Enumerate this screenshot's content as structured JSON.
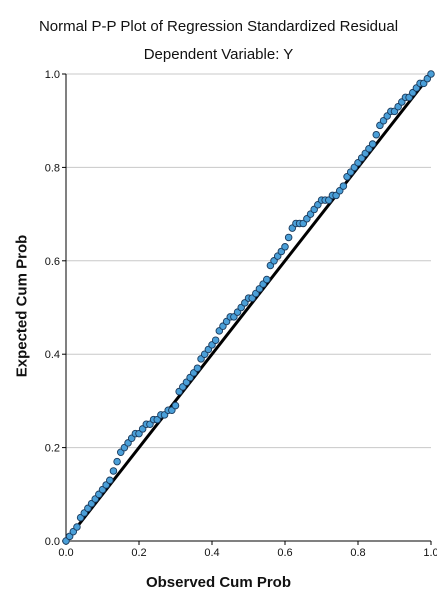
{
  "chart_data": {
    "type": "scatter",
    "title": "Normal P-P Plot of Regression Standardized Residual",
    "subtitle": "Dependent Variable: Y",
    "xlabel": "Observed Cum Prob",
    "ylabel": "Expected Cum Prob",
    "xlim": [
      0,
      1
    ],
    "ylim": [
      0,
      1
    ],
    "x_ticks": [
      "0.0",
      "0.2",
      "0.4",
      "0.6",
      "0.8",
      "1.0"
    ],
    "y_ticks": [
      "0.0",
      "0.2",
      "0.4",
      "0.6",
      "0.8",
      "1.0"
    ],
    "grid": "horizontal",
    "reference_line": [
      [
        0,
        0
      ],
      [
        1,
        1
      ]
    ],
    "colors": {
      "points_fill": "#4a9fd8",
      "points_stroke": "#1a3a5c",
      "line": "#000000",
      "grid": "#c8c8c8"
    },
    "points": [
      [
        0.0,
        0.0
      ],
      [
        0.01,
        0.01
      ],
      [
        0.02,
        0.02
      ],
      [
        0.03,
        0.03
      ],
      [
        0.04,
        0.05
      ],
      [
        0.05,
        0.06
      ],
      [
        0.06,
        0.07
      ],
      [
        0.07,
        0.08
      ],
      [
        0.08,
        0.09
      ],
      [
        0.09,
        0.1
      ],
      [
        0.1,
        0.11
      ],
      [
        0.11,
        0.12
      ],
      [
        0.12,
        0.13
      ],
      [
        0.13,
        0.15
      ],
      [
        0.14,
        0.17
      ],
      [
        0.15,
        0.19
      ],
      [
        0.16,
        0.2
      ],
      [
        0.17,
        0.21
      ],
      [
        0.18,
        0.22
      ],
      [
        0.19,
        0.23
      ],
      [
        0.2,
        0.23
      ],
      [
        0.21,
        0.24
      ],
      [
        0.22,
        0.25
      ],
      [
        0.23,
        0.25
      ],
      [
        0.24,
        0.26
      ],
      [
        0.25,
        0.26
      ],
      [
        0.26,
        0.27
      ],
      [
        0.27,
        0.27
      ],
      [
        0.28,
        0.28
      ],
      [
        0.29,
        0.28
      ],
      [
        0.3,
        0.29
      ],
      [
        0.31,
        0.32
      ],
      [
        0.32,
        0.33
      ],
      [
        0.33,
        0.34
      ],
      [
        0.34,
        0.35
      ],
      [
        0.35,
        0.36
      ],
      [
        0.36,
        0.37
      ],
      [
        0.37,
        0.39
      ],
      [
        0.38,
        0.4
      ],
      [
        0.39,
        0.41
      ],
      [
        0.4,
        0.42
      ],
      [
        0.41,
        0.43
      ],
      [
        0.42,
        0.45
      ],
      [
        0.43,
        0.46
      ],
      [
        0.44,
        0.47
      ],
      [
        0.45,
        0.48
      ],
      [
        0.46,
        0.48
      ],
      [
        0.47,
        0.49
      ],
      [
        0.48,
        0.5
      ],
      [
        0.49,
        0.51
      ],
      [
        0.5,
        0.52
      ],
      [
        0.51,
        0.52
      ],
      [
        0.52,
        0.53
      ],
      [
        0.53,
        0.54
      ],
      [
        0.54,
        0.55
      ],
      [
        0.55,
        0.56
      ],
      [
        0.56,
        0.59
      ],
      [
        0.57,
        0.6
      ],
      [
        0.58,
        0.61
      ],
      [
        0.59,
        0.62
      ],
      [
        0.6,
        0.63
      ],
      [
        0.61,
        0.65
      ],
      [
        0.62,
        0.67
      ],
      [
        0.63,
        0.68
      ],
      [
        0.64,
        0.68
      ],
      [
        0.65,
        0.68
      ],
      [
        0.66,
        0.69
      ],
      [
        0.67,
        0.7
      ],
      [
        0.68,
        0.71
      ],
      [
        0.69,
        0.72
      ],
      [
        0.7,
        0.73
      ],
      [
        0.71,
        0.73
      ],
      [
        0.72,
        0.73
      ],
      [
        0.73,
        0.74
      ],
      [
        0.74,
        0.74
      ],
      [
        0.75,
        0.75
      ],
      [
        0.76,
        0.76
      ],
      [
        0.77,
        0.78
      ],
      [
        0.78,
        0.79
      ],
      [
        0.79,
        0.8
      ],
      [
        0.8,
        0.81
      ],
      [
        0.81,
        0.82
      ],
      [
        0.82,
        0.83
      ],
      [
        0.83,
        0.84
      ],
      [
        0.84,
        0.85
      ],
      [
        0.85,
        0.87
      ],
      [
        0.86,
        0.89
      ],
      [
        0.87,
        0.9
      ],
      [
        0.88,
        0.91
      ],
      [
        0.89,
        0.92
      ],
      [
        0.9,
        0.92
      ],
      [
        0.91,
        0.93
      ],
      [
        0.92,
        0.94
      ],
      [
        0.93,
        0.95
      ],
      [
        0.94,
        0.95
      ],
      [
        0.95,
        0.96
      ],
      [
        0.96,
        0.97
      ],
      [
        0.97,
        0.98
      ],
      [
        0.98,
        0.98
      ],
      [
        0.99,
        0.99
      ],
      [
        1.0,
        1.0
      ]
    ]
  }
}
